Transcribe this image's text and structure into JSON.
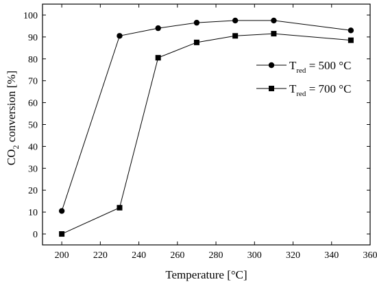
{
  "chart_data": {
    "type": "line",
    "title": "",
    "xlabel": "Temperature [°C]",
    "ylabel": {
      "main": "CO",
      "subscript": "2",
      "rest": " conversion [%]"
    },
    "xlim": [
      190,
      360
    ],
    "ylim": [
      -5,
      105
    ],
    "xticks": [
      200,
      220,
      240,
      260,
      280,
      300,
      320,
      340,
      360
    ],
    "yticks": [
      0,
      10,
      20,
      30,
      40,
      50,
      60,
      70,
      80,
      90,
      100
    ],
    "grid": false,
    "legend_position": "right",
    "series": [
      {
        "name": {
          "main": "T",
          "subscript": "red",
          "rest": " = 500 °C"
        },
        "marker": "circle",
        "color": "#000000",
        "x": [
          200,
          230,
          250,
          270,
          290,
          310,
          350
        ],
        "y": [
          10.5,
          90.5,
          94,
          96.5,
          97.5,
          97.5,
          93
        ]
      },
      {
        "name": {
          "main": "T",
          "subscript": "red",
          "rest": " = 700 °C"
        },
        "marker": "square",
        "color": "#000000",
        "x": [
          200,
          230,
          250,
          270,
          290,
          310,
          350
        ],
        "y": [
          0,
          12,
          80.5,
          87.5,
          90.5,
          91.5,
          88.5
        ]
      }
    ]
  }
}
